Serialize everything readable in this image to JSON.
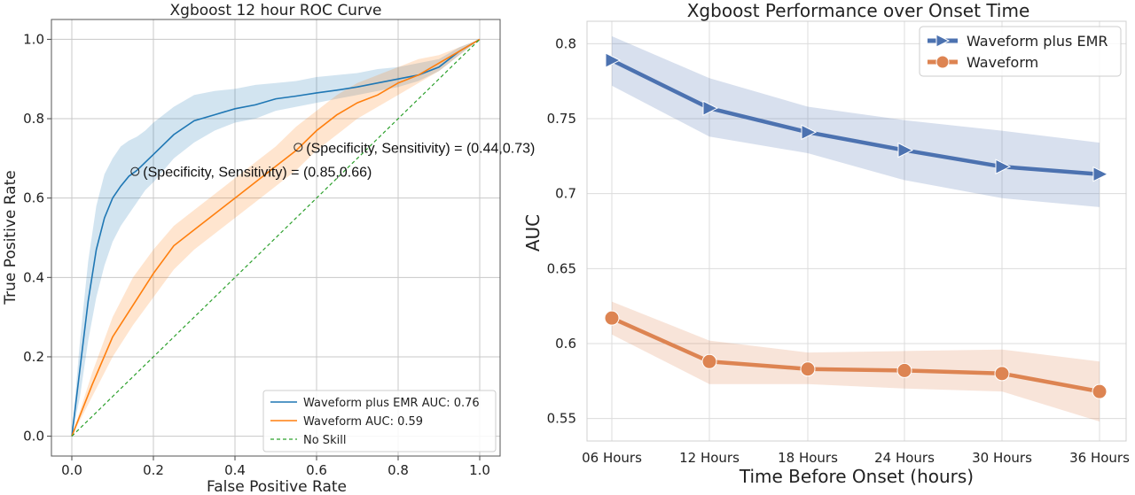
{
  "chart_data": [
    {
      "type": "line",
      "title": "Xgboost 12 hour ROC Curve",
      "xlabel": "False Positive Rate",
      "ylabel": "True Positive Rate",
      "xlim": [
        -0.05,
        1.05
      ],
      "ylim": [
        -0.05,
        1.05
      ],
      "xticks": [
        "0.0",
        "0.2",
        "0.4",
        "0.6",
        "0.8",
        "1.0"
      ],
      "yticks": [
        "0.0",
        "0.2",
        "0.4",
        "0.6",
        "0.8",
        "1.0"
      ],
      "grid": true,
      "legend_position": "bottom-right",
      "series": [
        {
          "name": "Waveform plus EMR AUC: 0.76",
          "color": "#1f77b4",
          "x": [
            0.0,
            0.02,
            0.04,
            0.06,
            0.08,
            0.1,
            0.12,
            0.14,
            0.16,
            0.18,
            0.2,
            0.25,
            0.3,
            0.35,
            0.4,
            0.45,
            0.5,
            0.55,
            0.6,
            0.65,
            0.7,
            0.75,
            0.8,
            0.85,
            0.9,
            0.95,
            1.0
          ],
          "y": [
            0.0,
            0.17,
            0.34,
            0.47,
            0.55,
            0.6,
            0.63,
            0.655,
            0.67,
            0.69,
            0.71,
            0.76,
            0.795,
            0.81,
            0.825,
            0.835,
            0.85,
            0.857,
            0.865,
            0.872,
            0.88,
            0.89,
            0.9,
            0.91,
            0.93,
            0.97,
            1.0
          ],
          "y_lower": [
            0.0,
            0.1,
            0.24,
            0.35,
            0.43,
            0.49,
            0.53,
            0.56,
            0.59,
            0.62,
            0.64,
            0.7,
            0.74,
            0.77,
            0.79,
            0.8,
            0.82,
            0.83,
            0.84,
            0.85,
            0.86,
            0.87,
            0.88,
            0.895,
            0.92,
            0.96,
            1.0
          ],
          "y_upper": [
            0.0,
            0.24,
            0.44,
            0.58,
            0.66,
            0.7,
            0.73,
            0.745,
            0.755,
            0.77,
            0.79,
            0.83,
            0.86,
            0.87,
            0.875,
            0.885,
            0.89,
            0.895,
            0.905,
            0.91,
            0.915,
            0.925,
            0.93,
            0.94,
            0.95,
            0.98,
            1.0
          ]
        },
        {
          "name": "Waveform AUC: 0.59",
          "color": "#ff7f0e",
          "x": [
            0.0,
            0.05,
            0.1,
            0.15,
            0.2,
            0.25,
            0.3,
            0.35,
            0.4,
            0.45,
            0.5,
            0.55,
            0.6,
            0.65,
            0.7,
            0.75,
            0.8,
            0.85,
            0.9,
            0.95,
            1.0
          ],
          "y": [
            0.0,
            0.13,
            0.25,
            0.33,
            0.41,
            0.48,
            0.52,
            0.56,
            0.6,
            0.64,
            0.68,
            0.72,
            0.77,
            0.81,
            0.84,
            0.86,
            0.89,
            0.91,
            0.94,
            0.97,
            1.0
          ],
          "y_lower": [
            0.0,
            0.1,
            0.2,
            0.28,
            0.35,
            0.42,
            0.47,
            0.51,
            0.55,
            0.59,
            0.63,
            0.67,
            0.72,
            0.76,
            0.8,
            0.83,
            0.86,
            0.89,
            0.92,
            0.96,
            1.0
          ],
          "y_upper": [
            0.0,
            0.16,
            0.3,
            0.4,
            0.47,
            0.53,
            0.57,
            0.61,
            0.65,
            0.69,
            0.73,
            0.78,
            0.82,
            0.86,
            0.89,
            0.91,
            0.93,
            0.95,
            0.96,
            0.98,
            1.0
          ]
        },
        {
          "name": "No Skill",
          "color": "#2ca02c",
          "dashed": true,
          "x": [
            0.0,
            1.0
          ],
          "y": [
            0.0,
            1.0
          ]
        }
      ],
      "annotations": [
        {
          "text": "(Specificity, Sensitivity) = (0.85,0.66)",
          "x": 0.155,
          "y": 0.667
        },
        {
          "text": "(Specificity, Sensitivity) = (0.44,0.73)",
          "x": 0.555,
          "y": 0.728
        }
      ]
    },
    {
      "type": "line",
      "title": "Xgboost Performance over Onset Time",
      "xlabel": "Time Before Onset (hours)",
      "ylabel": "AUC",
      "categories": [
        "06 Hours",
        "12 Hours",
        "18 Hours",
        "24 Hours",
        "30 Hours",
        "36 Hours"
      ],
      "ylim": [
        0.535,
        0.815
      ],
      "yticks": [
        "0.55",
        "0.6",
        "0.65",
        "0.7",
        "0.75",
        "0.8"
      ],
      "grid": true,
      "legend_position": "top-right",
      "series": [
        {
          "name": "Waveform plus EMR",
          "color": "#4c72b0",
          "marker": "triangle-right",
          "values": [
            0.789,
            0.757,
            0.741,
            0.729,
            0.718,
            0.713
          ],
          "lower": [
            0.772,
            0.738,
            0.727,
            0.709,
            0.697,
            0.691
          ],
          "upper": [
            0.805,
            0.777,
            0.758,
            0.749,
            0.742,
            0.734
          ]
        },
        {
          "name": "Waveform",
          "color": "#dd8452",
          "marker": "circle",
          "values": [
            0.617,
            0.588,
            0.583,
            0.582,
            0.58,
            0.568
          ],
          "lower": [
            0.606,
            0.573,
            0.573,
            0.57,
            0.568,
            0.548
          ],
          "upper": [
            0.628,
            0.602,
            0.594,
            0.595,
            0.596,
            0.588
          ]
        }
      ]
    }
  ]
}
